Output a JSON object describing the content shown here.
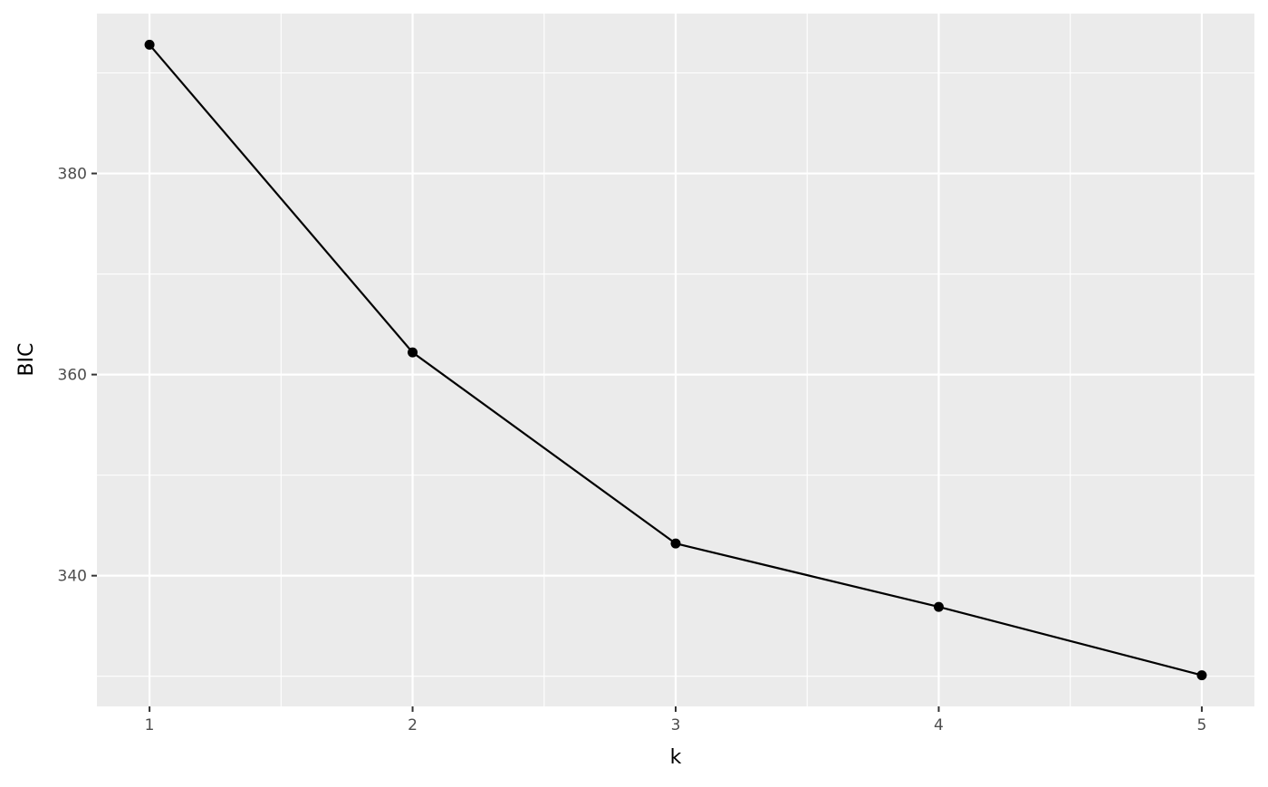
{
  "chart_data": {
    "type": "line",
    "title": "",
    "xlabel": "k",
    "ylabel": "BIC",
    "x": [
      1,
      2,
      3,
      4,
      5
    ],
    "series": [
      {
        "values": [
          392.8,
          362.2,
          343.2,
          336.9,
          330.1
        ],
        "color": "#000000",
        "markers": true
      }
    ],
    "xlim": [
      0.8,
      5.2
    ],
    "ylim": [
      327.0,
      395.9
    ],
    "xticks": [
      1,
      2,
      3,
      4,
      5
    ],
    "xtick_labels": [
      "1",
      "2",
      "3",
      "4",
      "5"
    ],
    "yticks": [
      340,
      360,
      380
    ],
    "ytick_labels": [
      "340",
      "360",
      "380"
    ],
    "grid": true,
    "panel_background": "#EBEBEB",
    "grid_color": "#FFFFFF"
  }
}
